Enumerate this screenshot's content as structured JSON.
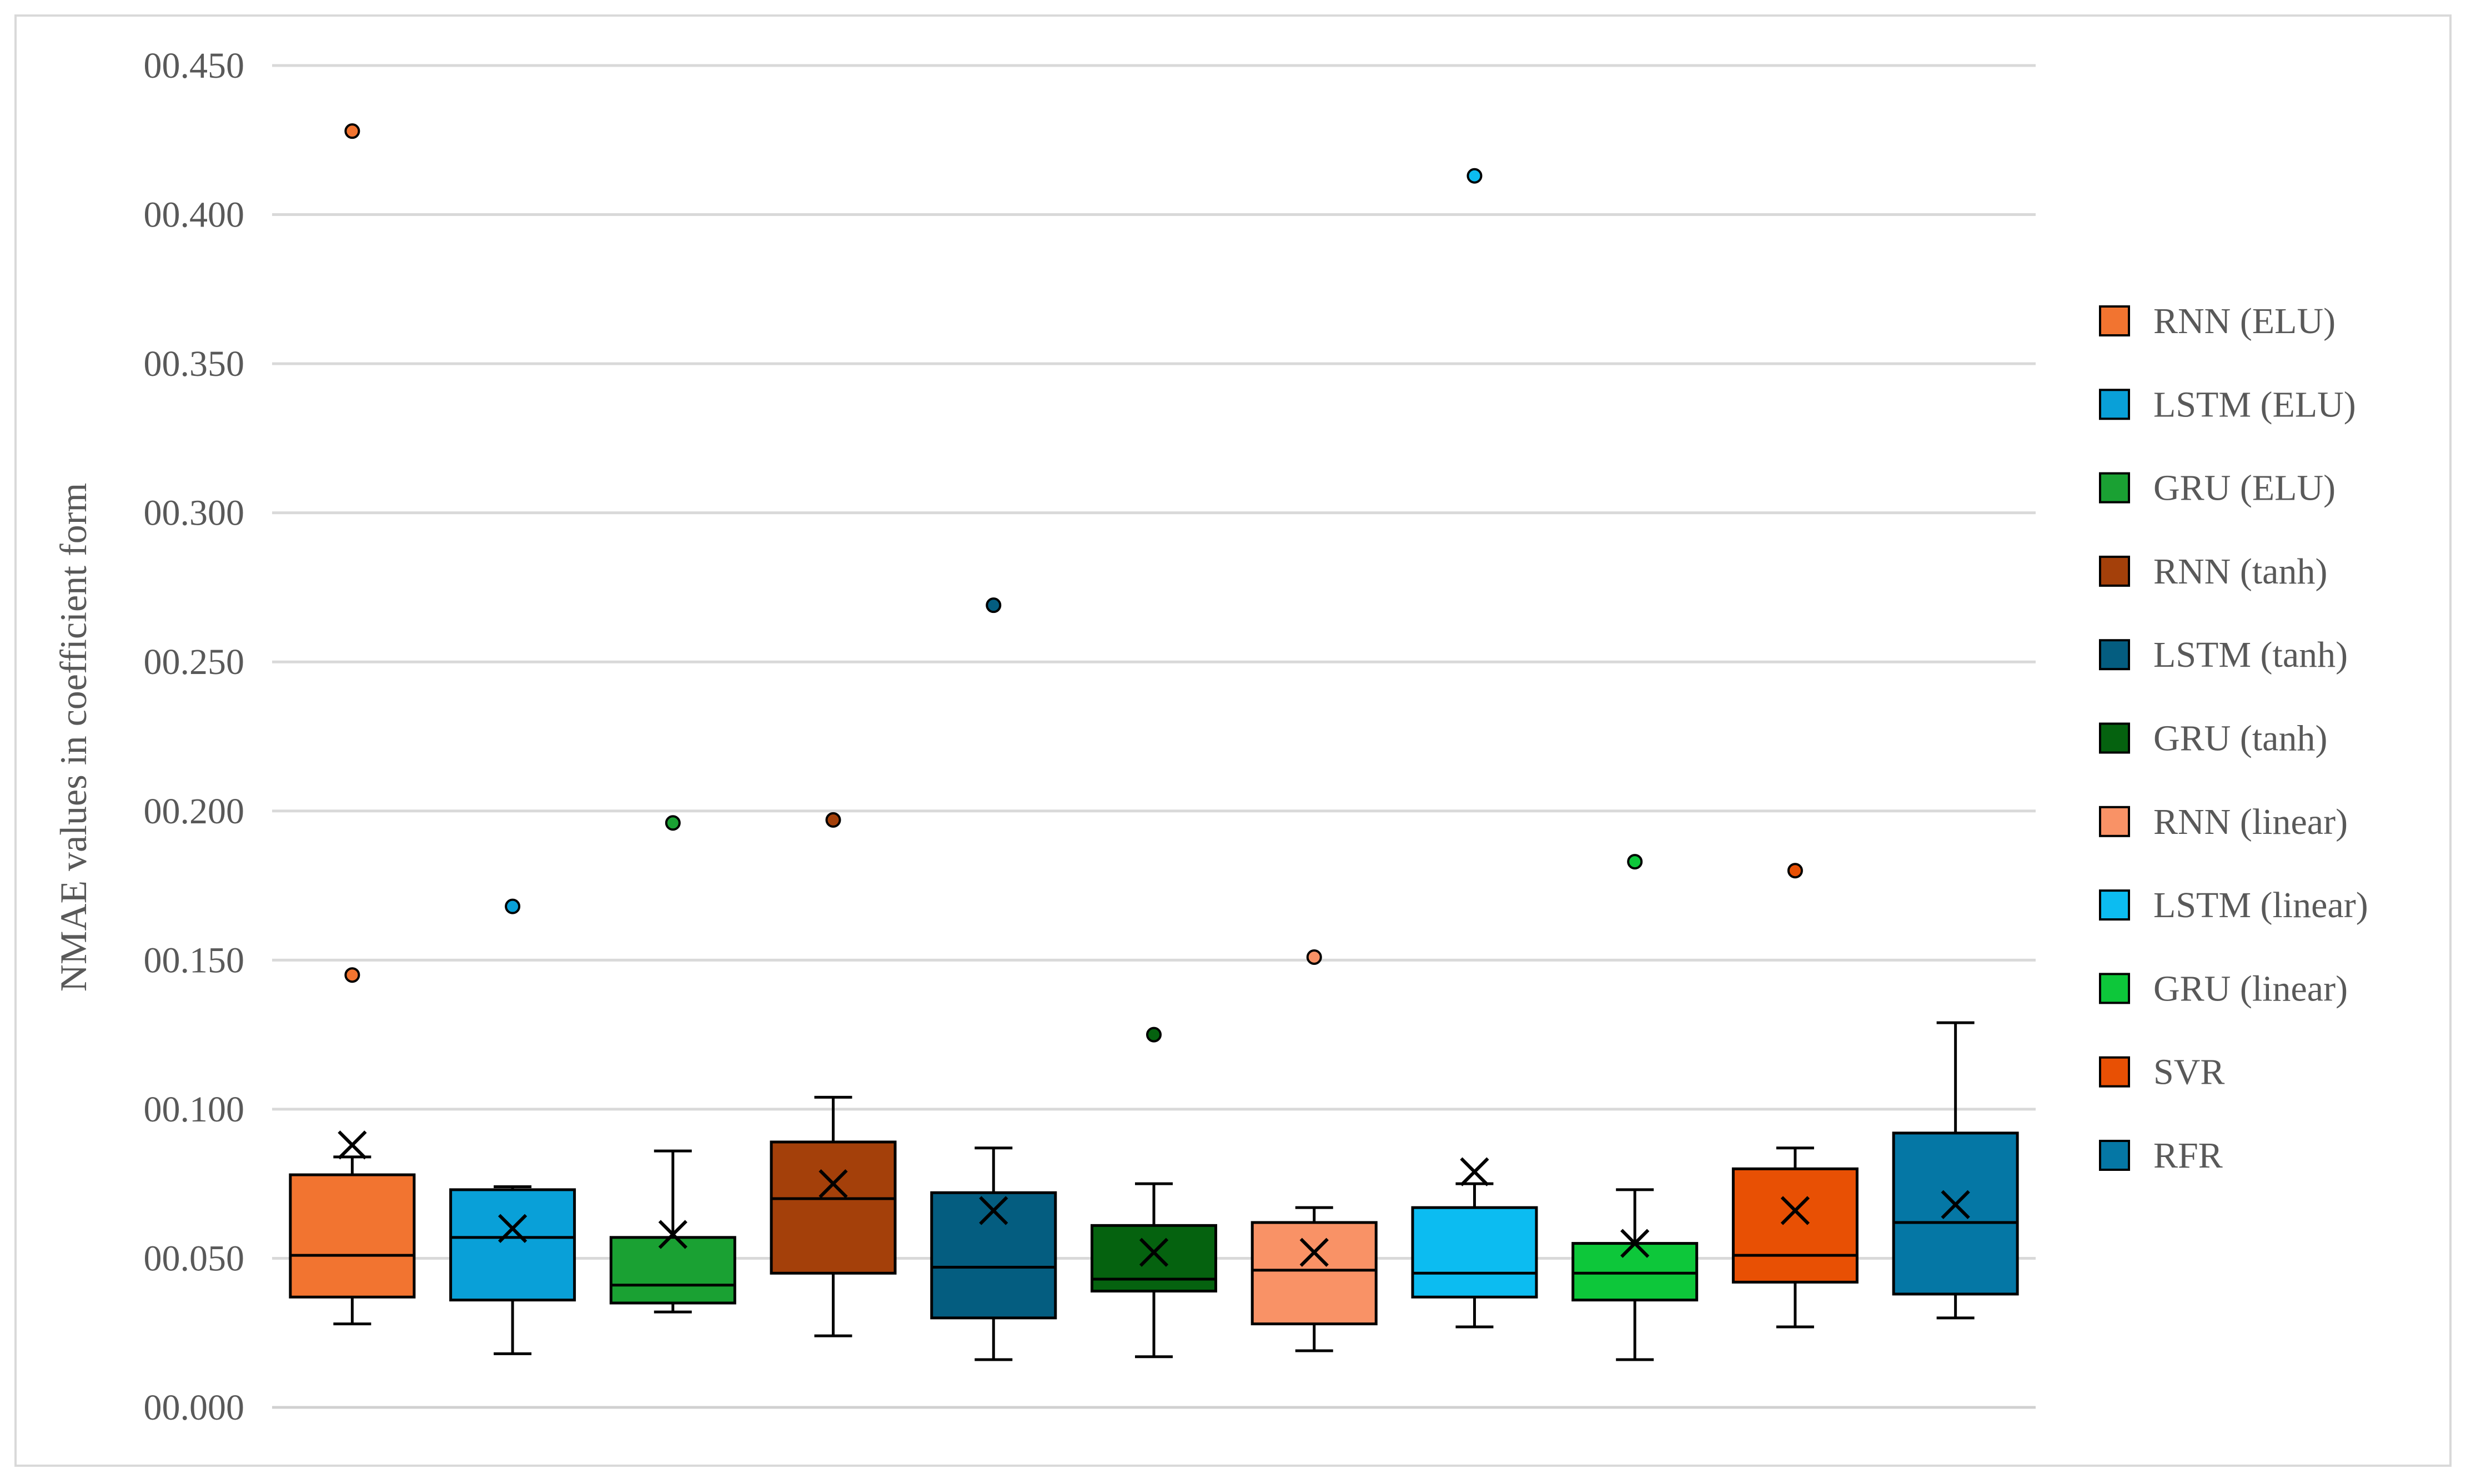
{
  "chart_data": {
    "type": "box",
    "title": "",
    "xlabel": "",
    "ylabel": "NMAE values in coefficient form",
    "ylim": [
      0,
      0.45
    ],
    "ytick_values": [
      0,
      0.05,
      0.1,
      0.15,
      0.2,
      0.25,
      0.3,
      0.35,
      0.4,
      0.45
    ],
    "ytick_labels": [
      "00.000",
      "00.050",
      "00.100",
      "00.150",
      "00.200",
      "00.250",
      "00.300",
      "00.350",
      "00.400",
      "00.450"
    ],
    "grid": true,
    "legend_position": "right",
    "series": [
      {
        "name": "RNN (ELU)",
        "color": "#F27430",
        "whisker_low": 0.028,
        "q1": 0.037,
        "median": 0.051,
        "q3": 0.078,
        "whisker_high": 0.084,
        "mean": 0.088,
        "outliers": [
          0.428,
          0.145
        ]
      },
      {
        "name": "LSTM (ELU)",
        "color": "#09A0D8",
        "whisker_low": 0.018,
        "q1": 0.036,
        "median": 0.057,
        "q3": 0.073,
        "whisker_high": 0.074,
        "mean": 0.06,
        "outliers": [
          0.168
        ]
      },
      {
        "name": "GRU (ELU)",
        "color": "#1AA133",
        "whisker_low": 0.032,
        "q1": 0.035,
        "median": 0.041,
        "q3": 0.057,
        "whisker_high": 0.086,
        "mean": 0.058,
        "outliers": [
          0.196
        ]
      },
      {
        "name": "RNN (tanh)",
        "color": "#A4400A",
        "whisker_low": 0.024,
        "q1": 0.045,
        "median": 0.07,
        "q3": 0.089,
        "whisker_high": 0.104,
        "mean": 0.075,
        "outliers": [
          0.197
        ]
      },
      {
        "name": "LSTM (tanh)",
        "color": "#045D80",
        "whisker_low": 0.016,
        "q1": 0.03,
        "median": 0.047,
        "q3": 0.072,
        "whisker_high": 0.087,
        "mean": 0.066,
        "outliers": [
          0.269
        ]
      },
      {
        "name": "GRU (tanh)",
        "color": "#05620F",
        "whisker_low": 0.017,
        "q1": 0.039,
        "median": 0.043,
        "q3": 0.061,
        "whisker_high": 0.075,
        "mean": 0.052,
        "outliers": [
          0.125
        ]
      },
      {
        "name": "RNN (linear)",
        "color": "#F99266",
        "whisker_low": 0.019,
        "q1": 0.028,
        "median": 0.046,
        "q3": 0.062,
        "whisker_high": 0.067,
        "mean": 0.052,
        "outliers": [
          0.151
        ]
      },
      {
        "name": "LSTM (linear)",
        "color": "#0CBCF1",
        "whisker_low": 0.027,
        "q1": 0.037,
        "median": 0.045,
        "q3": 0.067,
        "whisker_high": 0.075,
        "mean": 0.079,
        "outliers": [
          0.413
        ]
      },
      {
        "name": "GRU (linear)",
        "color": "#0DC73A",
        "whisker_low": 0.016,
        "q1": 0.036,
        "median": 0.045,
        "q3": 0.055,
        "whisker_high": 0.073,
        "mean": 0.055,
        "outliers": [
          0.183
        ]
      },
      {
        "name": "SVR",
        "color": "#E85004",
        "whisker_low": 0.027,
        "q1": 0.042,
        "median": 0.051,
        "q3": 0.08,
        "whisker_high": 0.087,
        "mean": 0.066,
        "outliers": [
          0.18
        ]
      },
      {
        "name": "RFR",
        "color": "#0577A5",
        "whisker_low": 0.03,
        "q1": 0.038,
        "median": 0.062,
        "q3": 0.092,
        "whisker_high": 0.129,
        "mean": 0.068,
        "outliers": []
      }
    ]
  }
}
